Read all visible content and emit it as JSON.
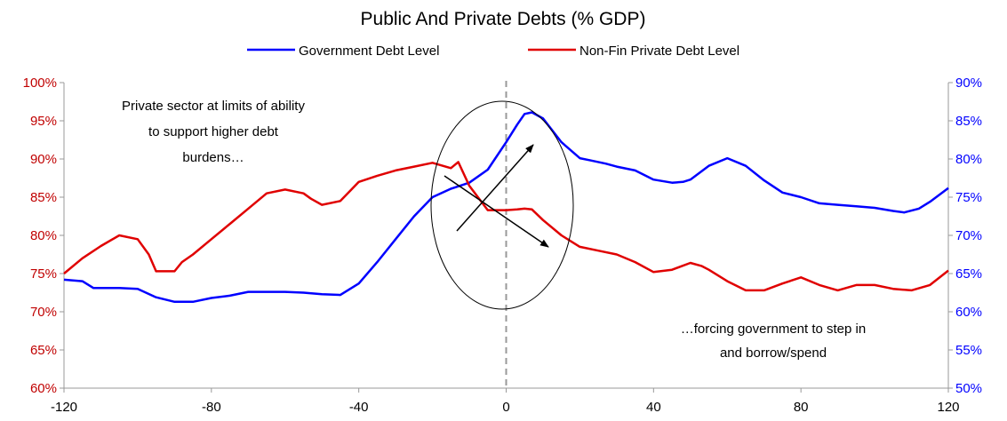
{
  "chart_data": {
    "type": "line",
    "title": "Public And Private Debts (% GDP)",
    "x_ticks": [
      -120,
      -80,
      -40,
      0,
      40,
      80,
      120
    ],
    "xlim": [
      -120,
      120
    ],
    "y_left": {
      "lim": [
        60,
        100
      ],
      "ticks": [
        "60%",
        "65%",
        "70%",
        "75%",
        "80%",
        "85%",
        "90%",
        "95%",
        "100%"
      ],
      "color": "#c00000"
    },
    "y_right": {
      "lim": [
        50,
        90
      ],
      "ticks": [
        "50%",
        "55%",
        "60%",
        "65%",
        "70%",
        "75%",
        "80%",
        "85%",
        "90%"
      ],
      "color": "#0000ff"
    },
    "grid": false,
    "legend": "top-center",
    "series": [
      {
        "name": "Government Debt Level",
        "axis": "right",
        "color": "#0000ff",
        "x": [
          -120,
          -115,
          -112,
          -105,
          -100,
          -95,
          -90,
          -85,
          -80,
          -75,
          -70,
          -65,
          -60,
          -55,
          -50,
          -45,
          -40,
          -35,
          -30,
          -25,
          -20,
          -15,
          -10,
          -5,
          0,
          3,
          5,
          7,
          10,
          15,
          20,
          23,
          27,
          30,
          35,
          40,
          45,
          48,
          50,
          55,
          60,
          65,
          70,
          75,
          80,
          85,
          90,
          95,
          100,
          105,
          108,
          112,
          115,
          120
        ],
        "y": [
          64.2,
          64.0,
          63.1,
          63.1,
          63.0,
          61.9,
          61.3,
          61.3,
          61.8,
          62.1,
          62.6,
          62.6,
          62.6,
          62.5,
          62.3,
          62.2,
          63.7,
          66.5,
          69.5,
          72.5,
          75.0,
          76.1,
          76.9,
          78.6,
          82.2,
          84.5,
          85.9,
          86.1,
          85.3,
          82.2,
          80.1,
          79.8,
          79.4,
          79.0,
          78.5,
          77.3,
          76.9,
          77.0,
          77.3,
          79.1,
          80.1,
          79.1,
          77.2,
          75.6,
          75.0,
          74.2,
          74.0,
          73.8,
          73.6,
          73.2,
          73.0,
          73.5,
          74.4,
          76.2
        ]
      },
      {
        "name": "Non-Fin Private Debt Level",
        "axis": "left",
        "color": "#e00000",
        "x": [
          -120,
          -115,
          -110,
          -105,
          -100,
          -97,
          -95,
          -90,
          -88,
          -85,
          -80,
          -75,
          -70,
          -65,
          -60,
          -55,
          -53,
          -50,
          -45,
          -42,
          -40,
          -35,
          -30,
          -25,
          -20,
          -15,
          -13,
          -10,
          -5,
          -2,
          0,
          3,
          5,
          7,
          10,
          15,
          20,
          25,
          30,
          35,
          40,
          45,
          50,
          53,
          55,
          60,
          65,
          70,
          75,
          80,
          85,
          90,
          95,
          100,
          105,
          110,
          115,
          120
        ],
        "y": [
          75.0,
          77.0,
          78.6,
          80.0,
          79.5,
          77.5,
          75.3,
          75.3,
          76.5,
          77.5,
          79.5,
          81.5,
          83.5,
          85.5,
          86.0,
          85.5,
          84.8,
          84.0,
          84.5,
          86.0,
          87.0,
          87.8,
          88.5,
          89.0,
          89.5,
          88.8,
          89.6,
          86.5,
          83.3,
          83.3,
          83.3,
          83.4,
          83.5,
          83.4,
          82.0,
          80.0,
          78.5,
          78.0,
          77.5,
          76.5,
          75.2,
          75.5,
          76.4,
          76.0,
          75.5,
          74.0,
          72.8,
          72.8,
          73.7,
          74.5,
          73.5,
          72.8,
          73.5,
          73.5,
          73.0,
          72.8,
          73.5,
          75.4
        ]
      }
    ],
    "annotations": [
      {
        "lines": [
          "Private sector at limits of ability",
          "to support higher debt",
          "burdens…"
        ]
      },
      {
        "lines": [
          "…forcing government to step in",
          "and borrow/spend"
        ]
      }
    ]
  }
}
